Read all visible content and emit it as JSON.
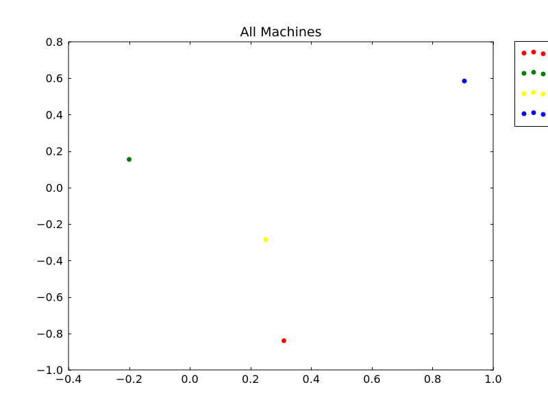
{
  "chart_data": {
    "type": "scatter",
    "title": "All Machines",
    "xlabel": "",
    "ylabel": "",
    "xlim": [
      -0.4,
      1.0
    ],
    "ylim": [
      -1.0,
      0.8
    ],
    "xticks": [
      -0.4,
      -0.2,
      0.0,
      0.2,
      0.4,
      0.6,
      0.8,
      1.0
    ],
    "xtick_labels": [
      "−0.4",
      "−0.2",
      "0.0",
      "0.2",
      "0.4",
      "0.6",
      "0.8",
      "1.0"
    ],
    "yticks": [
      -1.0,
      -0.8,
      -0.6,
      -0.4,
      -0.2,
      0.0,
      0.2,
      0.4,
      0.6,
      0.8
    ],
    "ytick_labels": [
      "−1.0",
      "−0.8",
      "−0.6",
      "−0.4",
      "−0.2",
      "0.0",
      "0.2",
      "0.4",
      "0.6",
      "0.8"
    ],
    "grid": false,
    "legend_position": "outside-top-right",
    "series": [
      {
        "color": "#ff0000",
        "points": [
          [
            0.31,
            -0.84
          ]
        ]
      },
      {
        "color": "#008000",
        "points": [
          [
            -0.2,
            0.155
          ]
        ]
      },
      {
        "color": "#ffff00",
        "points": [
          [
            0.25,
            -0.285
          ]
        ]
      },
      {
        "color": "#0000ff",
        "points": [
          [
            0.905,
            0.585
          ]
        ]
      }
    ]
  }
}
